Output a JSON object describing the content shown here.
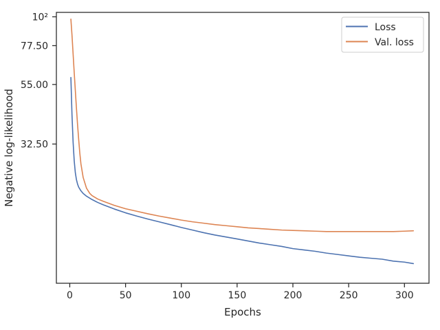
{
  "chart_data": {
    "type": "line",
    "title": "",
    "xlabel": "Epochs",
    "ylabel": "Negative log-likelihood",
    "yscale": "log",
    "xlim": [
      -12,
      322
    ],
    "ylim": [
      9.5,
      104
    ],
    "xticks": [
      0,
      50,
      100,
      150,
      200,
      250,
      300
    ],
    "xtick_labels": [
      "0",
      "50",
      "100",
      "150",
      "200",
      "250",
      "300"
    ],
    "yticks": [
      100,
      77.5,
      55,
      32.5
    ],
    "ytick_labels": [
      "10²",
      "77.50",
      "55.00",
      "32.50"
    ],
    "grid": false,
    "legend_position": "top-right",
    "series": [
      {
        "name": "Loss",
        "color": "#4c72b0",
        "points": [
          [
            1,
            58.5
          ],
          [
            2,
            42
          ],
          [
            3,
            33
          ],
          [
            4,
            28
          ],
          [
            5,
            25.2
          ],
          [
            6,
            23.7
          ],
          [
            7,
            22.8
          ],
          [
            8,
            22.2
          ],
          [
            10,
            21.5
          ],
          [
            12,
            21.0
          ],
          [
            15,
            20.5
          ],
          [
            20,
            19.9
          ],
          [
            25,
            19.4
          ],
          [
            30,
            19.0
          ],
          [
            40,
            18.3
          ],
          [
            50,
            17.7
          ],
          [
            60,
            17.2
          ],
          [
            70,
            16.75
          ],
          [
            80,
            16.35
          ],
          [
            90,
            15.95
          ],
          [
            100,
            15.55
          ],
          [
            110,
            15.2
          ],
          [
            120,
            14.85
          ],
          [
            130,
            14.55
          ],
          [
            140,
            14.3
          ],
          [
            150,
            14.05
          ],
          [
            160,
            13.8
          ],
          [
            170,
            13.55
          ],
          [
            180,
            13.35
          ],
          [
            190,
            13.15
          ],
          [
            200,
            12.9
          ],
          [
            210,
            12.75
          ],
          [
            220,
            12.6
          ],
          [
            230,
            12.4
          ],
          [
            240,
            12.25
          ],
          [
            250,
            12.1
          ],
          [
            260,
            11.95
          ],
          [
            270,
            11.85
          ],
          [
            280,
            11.75
          ],
          [
            290,
            11.55
          ],
          [
            300,
            11.45
          ],
          [
            308,
            11.3
          ]
        ]
      },
      {
        "name": "Val. loss",
        "color": "#dd8452",
        "points": [
          [
            1,
            98
          ],
          [
            2,
            85
          ],
          [
            3,
            72
          ],
          [
            4,
            61
          ],
          [
            5,
            52
          ],
          [
            6,
            44.5
          ],
          [
            7,
            38.5
          ],
          [
            8,
            33.8
          ],
          [
            9,
            30
          ],
          [
            10,
            27.3
          ],
          [
            12,
            24.2
          ],
          [
            15,
            22
          ],
          [
            18,
            21.0
          ],
          [
            20,
            20.6
          ],
          [
            25,
            20.0
          ],
          [
            30,
            19.6
          ],
          [
            40,
            18.9
          ],
          [
            50,
            18.35
          ],
          [
            60,
            17.95
          ],
          [
            70,
            17.55
          ],
          [
            80,
            17.2
          ],
          [
            90,
            16.9
          ],
          [
            100,
            16.6
          ],
          [
            110,
            16.35
          ],
          [
            120,
            16.15
          ],
          [
            130,
            15.95
          ],
          [
            140,
            15.8
          ],
          [
            150,
            15.65
          ],
          [
            160,
            15.5
          ],
          [
            170,
            15.4
          ],
          [
            180,
            15.3
          ],
          [
            190,
            15.2
          ],
          [
            200,
            15.15
          ],
          [
            210,
            15.1
          ],
          [
            220,
            15.05
          ],
          [
            230,
            15.0
          ],
          [
            240,
            15.0
          ],
          [
            250,
            15.0
          ],
          [
            260,
            15.0
          ],
          [
            270,
            15.0
          ],
          [
            280,
            15.0
          ],
          [
            290,
            15.0
          ],
          [
            300,
            15.05
          ],
          [
            308,
            15.1
          ]
        ]
      }
    ]
  }
}
